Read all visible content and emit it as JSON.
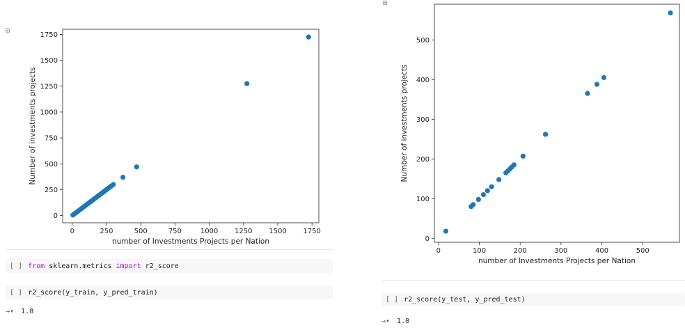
{
  "left": {
    "output_icon": "⊡",
    "cells": [
      {
        "bracket": "[ ]",
        "kw1": "from",
        "mid": " sklearn.metrics ",
        "kw2": "import",
        "tail": " r2_score"
      },
      {
        "bracket": "[ ]",
        "code": "r2_score(y_train, y_pred_train)"
      }
    ],
    "output": {
      "arrow": "→▾",
      "value": "1.0"
    }
  },
  "right": {
    "output_icon": "⊡",
    "cells": [
      {
        "bracket": "[ ]",
        "code": "r2_score(y_test, y_pred_test)"
      }
    ],
    "output": {
      "arrow": "→▾",
      "value": "1.0"
    }
  },
  "colors": {
    "point": "#1f77b4",
    "cell_bg": "#f7f7f7",
    "keyword": "#af00db"
  },
  "chart_data": [
    {
      "type": "scatter",
      "xlabel": "number of Investments Projects per Nation",
      "ylabel": "Number of investments projects",
      "xlim": [
        -70,
        1800
      ],
      "ylim": [
        -70,
        1800
      ],
      "xticks": [
        0,
        250,
        500,
        750,
        1000,
        1250,
        1500,
        1750
      ],
      "yticks": [
        0,
        250,
        500,
        750,
        1000,
        1250,
        1500,
        1750
      ],
      "grid": false,
      "x": [
        5,
        15,
        25,
        35,
        45,
        55,
        65,
        75,
        85,
        95,
        105,
        115,
        125,
        135,
        145,
        155,
        165,
        175,
        185,
        195,
        205,
        215,
        225,
        235,
        245,
        255,
        265,
        275,
        285,
        300,
        370,
        470,
        1275,
        1725
      ],
      "y": [
        5,
        15,
        25,
        35,
        45,
        55,
        65,
        75,
        85,
        95,
        105,
        115,
        125,
        135,
        145,
        155,
        165,
        175,
        185,
        195,
        205,
        215,
        225,
        235,
        245,
        255,
        265,
        275,
        285,
        300,
        370,
        470,
        1275,
        1725
      ]
    },
    {
      "type": "scatter",
      "xlabel": "number of Investments Projects per Nation",
      "ylabel": "Number of investments projects",
      "xlim": [
        -10,
        590
      ],
      "ylim": [
        -10,
        590
      ],
      "xticks": [
        0,
        100,
        200,
        300,
        400,
        500
      ],
      "yticks": [
        0,
        100,
        200,
        300,
        400,
        500
      ],
      "grid": false,
      "x": [
        18,
        80,
        85,
        98,
        110,
        120,
        130,
        148,
        165,
        170,
        175,
        180,
        185,
        207,
        262,
        365,
        388,
        405,
        568
      ],
      "y": [
        18,
        80,
        85,
        98,
        110,
        120,
        130,
        148,
        165,
        170,
        175,
        180,
        185,
        207,
        262,
        365,
        388,
        405,
        568
      ]
    }
  ]
}
